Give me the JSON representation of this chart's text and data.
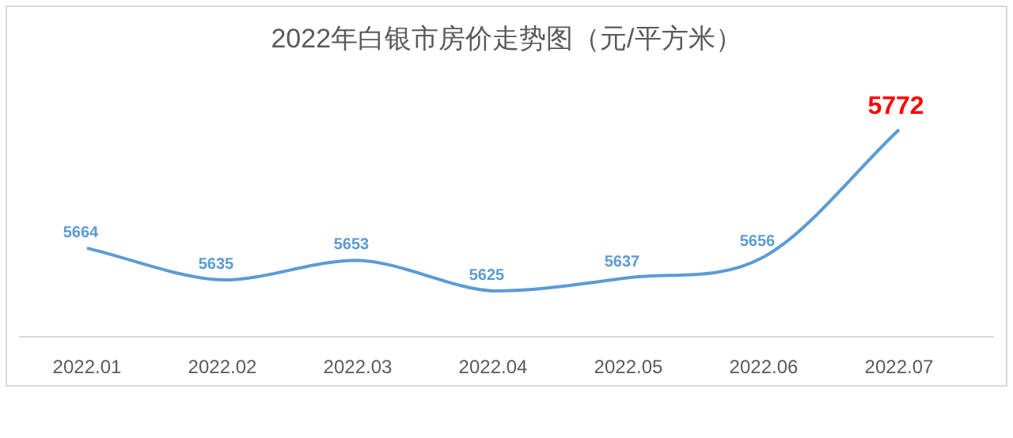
{
  "chart_data": {
    "type": "line",
    "title": "2022年白银市房价走势图（元/平方米）",
    "categories": [
      "2022.01",
      "2022.02",
      "2022.03",
      "2022.04",
      "2022.05",
      "2022.06",
      "2022.07"
    ],
    "series": [
      {
        "color": "#5b9bd5",
        "values": [
          5664,
          5635,
          5653,
          5625,
          5637,
          5656,
          5772
        ]
      }
    ],
    "data_labels": true,
    "marker": "none",
    "line_style": "solid"
  }
}
